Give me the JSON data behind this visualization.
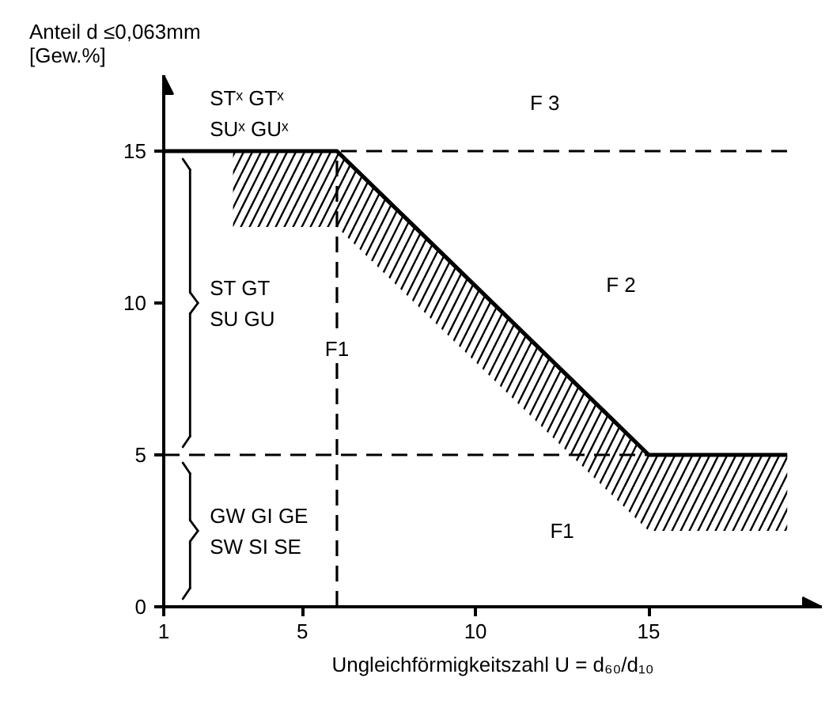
{
  "chart_data": {
    "type": "line",
    "xlabel": "Ungleichförmigkeitszahl U = d₆₀/d₁₀",
    "ylabel": "Anteil d ≤0,063mm\n[Gew.%]",
    "xlim": [
      1,
      20
    ],
    "ylim": [
      0,
      17.5
    ],
    "xticks": [
      1,
      5,
      10,
      15
    ],
    "yticks": [
      0,
      5,
      10,
      15
    ],
    "series": [
      {
        "color": "#000000",
        "x": [
          1,
          3,
          6,
          15,
          19
        ],
        "values": [
          15,
          15,
          15,
          5,
          5
        ],
        "lower": [
          null,
          12.5,
          12.5,
          2.5,
          2.5
        ],
        "upper": [
          null,
          15,
          15,
          5,
          5
        ]
      }
    ],
    "ref_lines": [
      {
        "axis": "y",
        "value": 15,
        "line_style": "dashed"
      },
      {
        "axis": "y",
        "value": 5,
        "line_style": "dashed"
      },
      {
        "axis": "x",
        "value": 6,
        "line_style": "dashed"
      }
    ],
    "annotations": [
      "STˣ GTˣ\nSUˣ GUˣ",
      "ST GT\nSU GU",
      "GW GI GE\nSW SI SE",
      {
        "text": "F 3",
        "x": 12,
        "y": 16.6
      },
      {
        "text": "F 2",
        "x": 14.2,
        "y": 10.6
      },
      {
        "text": "F1",
        "x": 6,
        "y": 8.5
      },
      {
        "text": "F1",
        "x": 12.5,
        "y": 2.5
      }
    ]
  }
}
